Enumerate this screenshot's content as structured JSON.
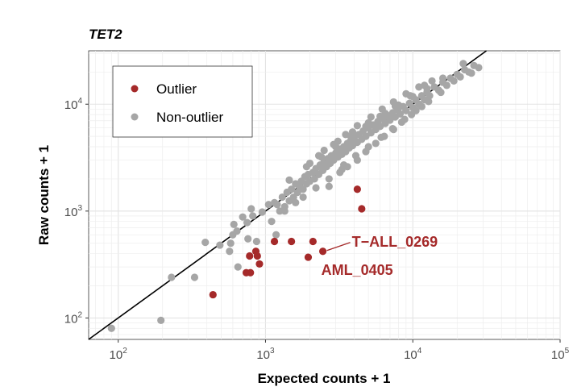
{
  "chart_data": {
    "type": "scatter",
    "title": "TET2",
    "xlabel": "Expected counts + 1",
    "ylabel": "Raw counts + 1",
    "x_scale": "log10",
    "y_scale": "log10",
    "xlim": [
      63,
      100000
    ],
    "ylim": [
      63,
      31600
    ],
    "x_ticks": [
      100,
      1000,
      10000,
      100000
    ],
    "y_ticks": [
      100,
      1000,
      10000
    ],
    "grid": true,
    "legend_position": "top-left",
    "reference_line": "y = x",
    "colors": {
      "outlier": "#a52a2a",
      "non_outlier": "#a6a6a6",
      "line": "#000000"
    },
    "series": [
      {
        "name": "Outlier",
        "points": [
          [
            4200,
            1600
          ],
          [
            4500,
            1050
          ],
          [
            1150,
            520
          ],
          [
            1500,
            520
          ],
          [
            2100,
            520
          ],
          [
            2450,
            420
          ],
          [
            1950,
            370
          ],
          [
            780,
            380
          ],
          [
            860,
            420
          ],
          [
            880,
            380
          ],
          [
            910,
            320
          ],
          [
            740,
            265
          ],
          [
            790,
            265
          ],
          [
            440,
            165
          ]
        ]
      },
      {
        "name": "Non-outlier",
        "points": [
          [
            90,
            80
          ],
          [
            195,
            95
          ],
          [
            230,
            240
          ],
          [
            330,
            240
          ],
          [
            390,
            510
          ],
          [
            490,
            480
          ],
          [
            570,
            420
          ],
          [
            580,
            500
          ],
          [
            600,
            600
          ],
          [
            610,
            750
          ],
          [
            640,
            650
          ],
          [
            650,
            300
          ],
          [
            700,
            880
          ],
          [
            750,
            780
          ],
          [
            760,
            550
          ],
          [
            800,
            1050
          ],
          [
            820,
            900
          ],
          [
            870,
            520
          ],
          [
            950,
            980
          ],
          [
            1050,
            1150
          ],
          [
            1100,
            800
          ],
          [
            1150,
            1200
          ],
          [
            1180,
            600
          ],
          [
            1250,
            1000
          ],
          [
            1300,
            1350
          ],
          [
            1350,
            1100
          ],
          [
            1400,
            1500
          ],
          [
            1450,
            1250
          ],
          [
            1500,
            1600
          ],
          [
            1550,
            1350
          ],
          [
            1600,
            1800
          ],
          [
            1650,
            1500
          ],
          [
            1700,
            1700
          ],
          [
            1750,
            1900
          ],
          [
            1800,
            1600
          ],
          [
            1850,
            2100
          ],
          [
            1900,
            1800
          ],
          [
            1950,
            2200
          ],
          [
            2000,
            1900
          ],
          [
            2100,
            2300
          ],
          [
            2150,
            2000
          ],
          [
            2200,
            2500
          ],
          [
            2300,
            2200
          ],
          [
            2350,
            2700
          ],
          [
            2450,
            2400
          ],
          [
            2500,
            2900
          ],
          [
            2600,
            2600
          ],
          [
            2650,
            3100
          ],
          [
            2750,
            2800
          ],
          [
            2800,
            3300
          ],
          [
            2900,
            3000
          ],
          [
            3000,
            3500
          ],
          [
            3100,
            3200
          ],
          [
            3200,
            3800
          ],
          [
            3300,
            3400
          ],
          [
            3400,
            4000
          ],
          [
            3500,
            3600
          ],
          [
            3600,
            4300
          ],
          [
            3700,
            3900
          ],
          [
            3800,
            4600
          ],
          [
            3900,
            4100
          ],
          [
            4000,
            4900
          ],
          [
            4200,
            4400
          ],
          [
            4300,
            5200
          ],
          [
            4500,
            4700
          ],
          [
            4600,
            5600
          ],
          [
            4800,
            5000
          ],
          [
            5000,
            6000
          ],
          [
            5200,
            5400
          ],
          [
            5400,
            6400
          ],
          [
            5600,
            5800
          ],
          [
            5800,
            6900
          ],
          [
            6000,
            6200
          ],
          [
            6300,
            7300
          ],
          [
            6500,
            6600
          ],
          [
            6800,
            7800
          ],
          [
            7000,
            7100
          ],
          [
            7300,
            8300
          ],
          [
            7600,
            7600
          ],
          [
            7900,
            8900
          ],
          [
            8200,
            8100
          ],
          [
            8600,
            9500
          ],
          [
            9000,
            8700
          ],
          [
            9500,
            10200
          ],
          [
            10000,
            9300
          ],
          [
            10500,
            11000
          ],
          [
            11000,
            10000
          ],
          [
            11500,
            12000
          ],
          [
            12000,
            11000
          ],
          [
            12500,
            13000
          ],
          [
            13000,
            12000
          ],
          [
            14000,
            14500
          ],
          [
            15000,
            13500
          ],
          [
            16000,
            16000
          ],
          [
            17000,
            15000
          ],
          [
            18000,
            17500
          ],
          [
            19000,
            16500
          ],
          [
            20000,
            19000
          ],
          [
            21000,
            18000
          ],
          [
            22500,
            21000
          ],
          [
            24000,
            20000
          ],
          [
            26000,
            23000
          ],
          [
            28000,
            22000
          ],
          [
            3200,
            2300
          ],
          [
            3600,
            2600
          ],
          [
            2700,
            1700
          ],
          [
            4200,
            3000
          ],
          [
            4800,
            3600
          ],
          [
            5600,
            4300
          ],
          [
            6400,
            5000
          ],
          [
            7400,
            5800
          ],
          [
            8400,
            6800
          ],
          [
            9800,
            8000
          ],
          [
            11500,
            9500
          ],
          [
            2300,
            3300
          ],
          [
            2900,
            4200
          ],
          [
            3500,
            5200
          ],
          [
            4200,
            6300
          ],
          [
            5200,
            7600
          ],
          [
            6200,
            9000
          ],
          [
            7400,
            10500
          ],
          [
            9000,
            12500
          ],
          [
            11000,
            14500
          ],
          [
            13500,
            16500
          ],
          [
            2000,
            2800
          ],
          [
            2500,
            3700
          ],
          [
            3100,
            4500
          ],
          [
            3900,
            5500
          ],
          [
            5000,
            6700
          ],
          [
            6500,
            8200
          ],
          [
            8000,
            9800
          ],
          [
            10000,
            11800
          ],
          [
            12500,
            14000
          ],
          [
            16000,
            17500
          ],
          [
            1450,
            1950
          ],
          [
            1900,
            2600
          ],
          [
            2400,
            3200
          ],
          [
            3000,
            4000
          ],
          [
            3800,
            5000
          ],
          [
            4800,
            6200
          ],
          [
            6000,
            7700
          ],
          [
            7600,
            9600
          ],
          [
            9600,
            12000
          ],
          [
            12000,
            15000
          ],
          [
            22000,
            24000
          ],
          [
            25000,
            19500
          ],
          [
            3400,
            2700
          ],
          [
            4100,
            3300
          ],
          [
            5000,
            4000
          ],
          [
            6100,
            4900
          ],
          [
            7300,
            5900
          ],
          [
            8800,
            7200
          ],
          [
            10500,
            8700
          ],
          [
            12800,
            10600
          ],
          [
            15500,
            12900
          ],
          [
            1600,
            1200
          ],
          [
            1350,
            1000
          ],
          [
            2700,
            2000
          ],
          [
            2200,
            1650
          ],
          [
            3300,
            2450
          ],
          [
            1800,
            1350
          ],
          [
            1200,
            1150
          ]
        ]
      }
    ],
    "annotations": [
      {
        "text": "T−ALL_0269",
        "x": 2450,
        "y": 420
      },
      {
        "text": "AML_0405",
        "x": 2450,
        "y": 420
      }
    ]
  }
}
